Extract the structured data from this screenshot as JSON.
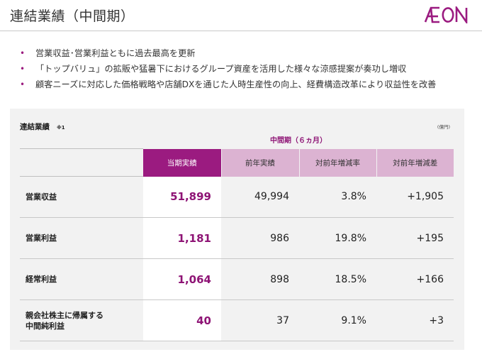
{
  "header": {
    "title": "連結業績（中間期）",
    "logo_text": "ÆON"
  },
  "bullets": [
    "営業収益･営業利益ともに過去最高を更新",
    "「トップバリュ」の拡販や猛暑下におけるグループ資産を活用した様々な涼感提案が奏功し増収",
    "顧客ニーズに対応した価格戦略や店舗DXを通じた人時生産性の向上、経費構造改革により収益性を改善"
  ],
  "bullet_symbol": "•",
  "panel": {
    "title": "連結業績",
    "note": "※1",
    "unit": "(億円)",
    "period": "中間期（６ヵ月）",
    "columns": [
      "当期実績",
      "前年実績",
      "対前年増減率",
      "対前年増減差"
    ],
    "rows": [
      {
        "label": "営業収益",
        "current": "51,899",
        "prior": "49,994",
        "rate": "3.8%",
        "diff": "+1,905"
      },
      {
        "label": "営業利益",
        "current": "1,181",
        "prior": "986",
        "rate": "19.8%",
        "diff": "+195"
      },
      {
        "label": "経常利益",
        "current": "1,064",
        "prior": "898",
        "rate": "18.5%",
        "diff": "+166"
      },
      {
        "label_line1": "親会社株主に帰属する",
        "label_line2": "中間純利益",
        "current": "40",
        "prior": "37",
        "rate": "9.1%",
        "diff": "+3"
      }
    ]
  },
  "colors": {
    "accent": "#9b1b80",
    "header_light": "#dcb3d2",
    "panel_bg": "#f2f2f2"
  }
}
